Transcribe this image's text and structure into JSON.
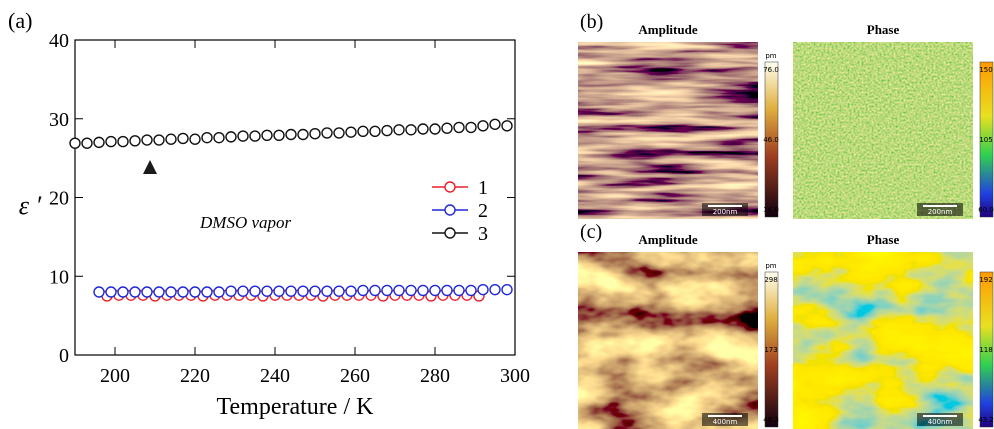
{
  "chart_data": {
    "type": "line",
    "panel_label": "(a)",
    "x_label": "Temperature / K",
    "y_label": "ε ′",
    "annotation": "DMSO vapor",
    "xlim": [
      190,
      300
    ],
    "xticks": [
      200,
      220,
      240,
      260,
      280,
      300
    ],
    "ylim": [
      0,
      40
    ],
    "yticks": [
      0,
      10,
      20,
      30,
      40
    ],
    "series": [
      {
        "name": "1",
        "color": "#e8202a",
        "x": [
          198,
          201,
          204,
          207,
          210,
          213,
          216,
          219,
          222,
          225,
          228,
          231,
          234,
          237,
          240,
          243,
          246,
          249,
          252,
          255,
          258,
          261,
          264,
          267,
          270,
          273,
          276,
          279,
          282,
          285,
          288,
          291
        ],
        "values": [
          7.5,
          7.6,
          7.6,
          7.6,
          7.5,
          7.6,
          7.6,
          7.6,
          7.5,
          7.6,
          7.6,
          7.6,
          7.6,
          7.5,
          7.6,
          7.6,
          7.6,
          7.6,
          7.5,
          7.6,
          7.6,
          7.6,
          7.6,
          7.5,
          7.6,
          7.6,
          7.6,
          7.5,
          7.6,
          7.6,
          7.6,
          7.5
        ]
      },
      {
        "name": "2",
        "color": "#2028d8",
        "x": [
          196,
          199,
          202,
          205,
          208,
          211,
          214,
          217,
          220,
          223,
          226,
          229,
          232,
          235,
          238,
          241,
          244,
          247,
          250,
          253,
          256,
          259,
          262,
          265,
          268,
          271,
          274,
          277,
          280,
          283,
          286,
          289,
          292,
          295,
          298
        ],
        "values": [
          8.0,
          8.0,
          8.0,
          8.0,
          8.0,
          8.0,
          8.0,
          8.0,
          8.0,
          8.0,
          8.0,
          8.1,
          8.1,
          8.1,
          8.1,
          8.1,
          8.1,
          8.1,
          8.1,
          8.1,
          8.1,
          8.1,
          8.2,
          8.2,
          8.2,
          8.2,
          8.2,
          8.2,
          8.2,
          8.2,
          8.2,
          8.2,
          8.3,
          8.3,
          8.3
        ]
      },
      {
        "name": "3",
        "color": "#111111",
        "x": [
          190,
          193,
          196,
          199,
          202,
          205,
          208,
          211,
          214,
          217,
          220,
          223,
          226,
          229,
          232,
          235,
          238,
          241,
          244,
          247,
          250,
          253,
          256,
          259,
          262,
          265,
          268,
          271,
          274,
          277,
          280,
          283,
          286,
          289,
          292,
          295,
          298
        ],
        "values": [
          26.9,
          26.9,
          27.0,
          27.1,
          27.1,
          27.2,
          27.3,
          27.3,
          27.4,
          27.5,
          27.4,
          27.6,
          27.6,
          27.7,
          27.8,
          27.8,
          27.9,
          27.9,
          28.0,
          28.0,
          28.1,
          28.2,
          28.2,
          28.3,
          28.4,
          28.4,
          28.5,
          28.6,
          28.6,
          28.7,
          28.7,
          28.8,
          28.9,
          28.9,
          29.1,
          29.3,
          29.1
        ]
      }
    ]
  },
  "panels": [
    {
      "label": "(b)",
      "images": [
        {
          "title": "Amplitude",
          "scale_bar": "200nm",
          "colorbar": {
            "unit": "pm",
            "labels": [
              "76.0",
              "46.0",
              "16.0"
            ]
          }
        },
        {
          "title": "Phase",
          "scale_bar": "200nm",
          "colorbar": {
            "labels": [
              "150",
              "105",
              "60.0"
            ]
          }
        }
      ]
    },
    {
      "label": "(c)",
      "images": [
        {
          "title": "Amplitude",
          "scale_bar": "400nm",
          "colorbar": {
            "unit": "pm",
            "labels": [
              "298",
              "173",
              "48.3"
            ]
          }
        },
        {
          "title": "Phase",
          "scale_bar": "400nm",
          "colorbar": {
            "labels": [
              "192",
              "118",
              "43.2"
            ]
          }
        }
      ]
    }
  ]
}
